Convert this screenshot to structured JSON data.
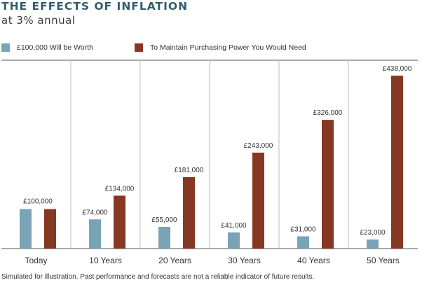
{
  "header": {
    "title": "THE EFFECTS OF INFLATION",
    "subtitle": "at 3% annual"
  },
  "legend": [
    {
      "label": "£100,000 Will be Worth",
      "color": "#7aa3b5"
    },
    {
      "label": "To Maintain Purchasing Power You Would Need",
      "color": "#873823"
    }
  ],
  "chart_data": {
    "type": "bar",
    "categories": [
      "Today",
      "10 Years",
      "20 Years",
      "30 Years",
      "40 Years",
      "50 Years"
    ],
    "series": [
      {
        "name": "£100,000 Will be Worth",
        "values": [
          100000,
          74000,
          55000,
          41000,
          31000,
          23000
        ],
        "labels": [
          "",
          "£74,000",
          "£55,000",
          "£41,000",
          "£31,000",
          "£23,000"
        ]
      },
      {
        "name": "To Maintain Purchasing Power You Would Need",
        "values": [
          100000,
          134000,
          181000,
          243000,
          326000,
          438000
        ],
        "labels": [
          "",
          "£134,000",
          "£181,000",
          "£243,000",
          "£326,000",
          "£438,000"
        ]
      }
    ],
    "shared_labels": [
      "£100,000",
      "",
      "",
      "",
      "",
      ""
    ],
    "ylim": [
      0,
      438000
    ],
    "grid": false,
    "legend_position": "top-left",
    "title": "THE EFFECTS OF INFLATION",
    "subtitle": "at 3% annual"
  },
  "footnote": "Simulated for illustration. Past performance and forecasts are not a reliable indicator of future results."
}
